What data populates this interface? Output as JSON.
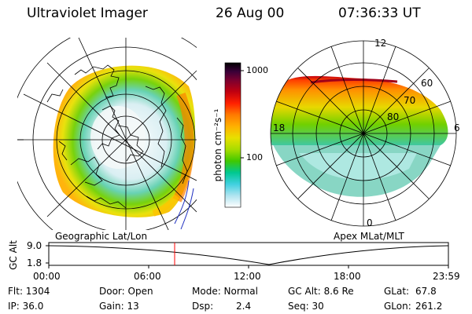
{
  "header": {
    "title": "Ultraviolet Imager",
    "date": "26 Aug 00",
    "time": "07:36:33 UT"
  },
  "colorbar": {
    "unit_label": "photon cm⁻²s⁻¹",
    "ticks": [
      "1000",
      "100"
    ],
    "colors": [
      "#000000",
      "#3a0038",
      "#7a0030",
      "#b00018",
      "#e00000",
      "#ff4000",
      "#ff7a00",
      "#ffa000",
      "#ffc800",
      "#e8e000",
      "#b8e000",
      "#78d800",
      "#30c800",
      "#00c878",
      "#20c8c8",
      "#60d8e8",
      "#a8e8f0",
      "#dde8f0",
      "#ffffff"
    ]
  },
  "left_panel": {
    "caption": "Geographic Lat/Lon"
  },
  "right_panel": {
    "caption": "Apex MLat/MLT",
    "mlt_labels": {
      "top": "12",
      "bottom": "0",
      "left": "18",
      "right": "6"
    },
    "lat_labels": [
      "60",
      "70",
      "80"
    ]
  },
  "altitude_plot": {
    "ylabel": "GC Alt",
    "yticks": [
      "9.0",
      "1.8"
    ],
    "xticks": [
      "00:00",
      "06:00",
      "12:00",
      "18:00",
      "23:59"
    ],
    "current_time_marker": "07:36"
  },
  "info": {
    "flt": "Flt: 1304",
    "ip": "IP: 36.0",
    "door": "Door: Open",
    "gain": "Gain: 13",
    "mode": "Mode: Normal",
    "dsp": "Dsp:",
    "dsp_value": "2.4",
    "gc_alt": "GC Alt: 8.6 Re",
    "seq": "Seq: 30",
    "glat": "GLat:",
    "glat_value": "67.8",
    "glon": "GLon:",
    "glon_value": "261.2"
  }
}
